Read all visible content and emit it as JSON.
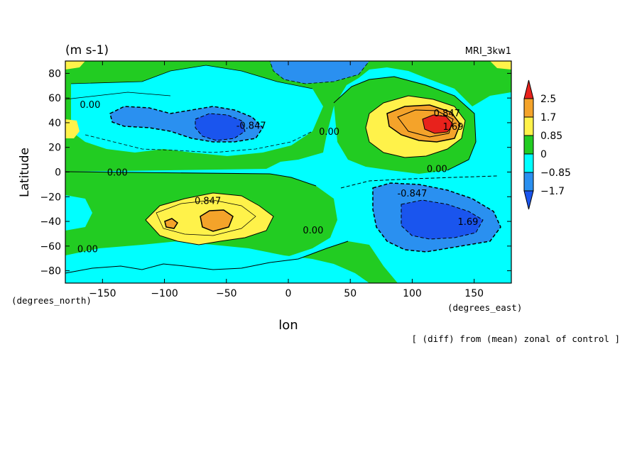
{
  "chart_data": {
    "type": "heatmap",
    "subtitle_units": "(m s-1)",
    "model": "MRI_3kw1",
    "xlabel": "lon",
    "ylabel": "Latitude",
    "x_units_label": "(degrees_east)",
    "y_units_label": "(degrees_north)",
    "caption": "[ (diff) from (mean) zonal of control ]",
    "xlim": [
      -180,
      180
    ],
    "ylim": [
      -90,
      90
    ],
    "x_ticks": [
      -150,
      -100,
      -50,
      0,
      50,
      100,
      150
    ],
    "x_tick_labels": [
      "−150",
      "−100",
      "−50",
      "0",
      "50",
      "100",
      "150"
    ],
    "y_ticks": [
      80,
      60,
      40,
      20,
      0,
      -20,
      -40,
      -60,
      -80
    ],
    "y_tick_labels": [
      "80",
      "60",
      "40",
      "20",
      "0",
      "−20",
      "−40",
      "−60",
      "−80"
    ],
    "colorbar": {
      "levels": [
        2.5,
        1.7,
        0.85,
        0,
        -0.85,
        -1.7
      ],
      "labels": [
        "2.5",
        "1.7",
        "0.85",
        "0",
        "−0.85",
        "−1.7"
      ],
      "colors": [
        "#e8221c",
        "#f4a32a",
        "#fff24a",
        "#22cc22",
        "#00ffff",
        "#2a90f0",
        "#1a55ee"
      ]
    },
    "contour_labels": [
      {
        "text": "0.00",
        "lon": -160,
        "lat": 55
      },
      {
        "text": "-0.847",
        "lon": -30,
        "lat": 38
      },
      {
        "text": "0.00",
        "lon": 33,
        "lat": 33
      },
      {
        "text": "0.847",
        "lon": 128,
        "lat": 48
      },
      {
        "text": "1.69",
        "lon": 133,
        "lat": 37
      },
      {
        "text": "0.00",
        "lon": -138,
        "lat": 0
      },
      {
        "text": "0.00",
        "lon": 120,
        "lat": 3
      },
      {
        "text": "0.847",
        "lon": -65,
        "lat": -23
      },
      {
        "text": "-0.847",
        "lon": 100,
        "lat": -17
      },
      {
        "text": "1.69",
        "lon": 145,
        "lat": -40
      },
      {
        "text": "0.00",
        "lon": 20,
        "lat": -47
      },
      {
        "text": "0.00",
        "lon": -162,
        "lat": -62
      }
    ]
  }
}
